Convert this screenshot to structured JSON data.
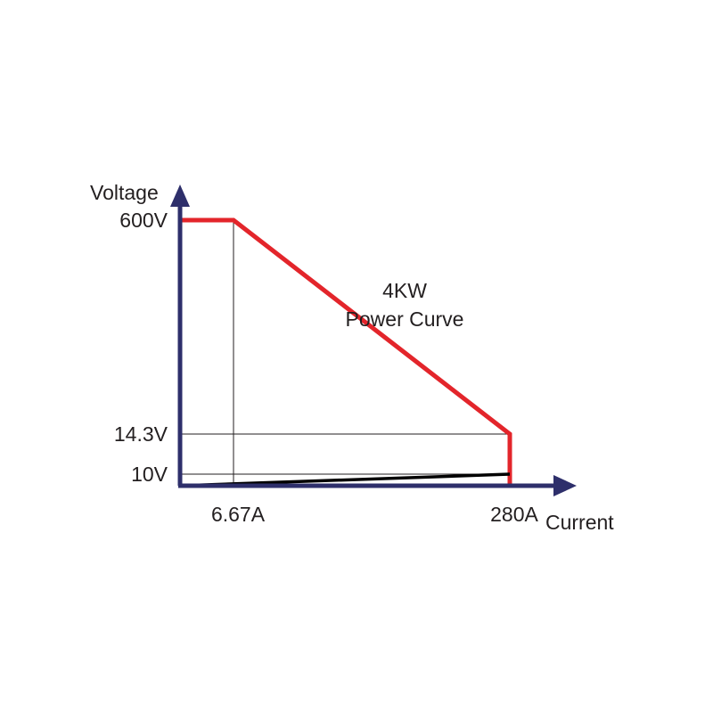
{
  "chart_data": {
    "type": "line",
    "title": "4KW",
    "subtitle": "Power Curve",
    "xlabel": "Current",
    "ylabel": "Voltage",
    "x_ticks": [
      {
        "value": 6.67,
        "label": "6.67A"
      },
      {
        "value": 280,
        "label": "280A"
      }
    ],
    "y_ticks": [
      {
        "value": 600,
        "label": "600V"
      },
      {
        "value": 14.3,
        "label": "14.3V"
      },
      {
        "value": 10,
        "label": "10V"
      }
    ],
    "power_watts": 4000,
    "series": [
      {
        "x": [
          0,
          6.67,
          280,
          280
        ],
        "y": [
          600,
          600,
          14.3,
          0
        ]
      },
      {
        "x": [
          0,
          280
        ],
        "y": [
          0,
          10
        ]
      }
    ],
    "grid": false,
    "colors": {
      "axis": "#2e2f6b",
      "power_curve": "#e3252b",
      "base_line": "#000000",
      "guide_lines": "#231f20",
      "text": "#231f20"
    }
  }
}
